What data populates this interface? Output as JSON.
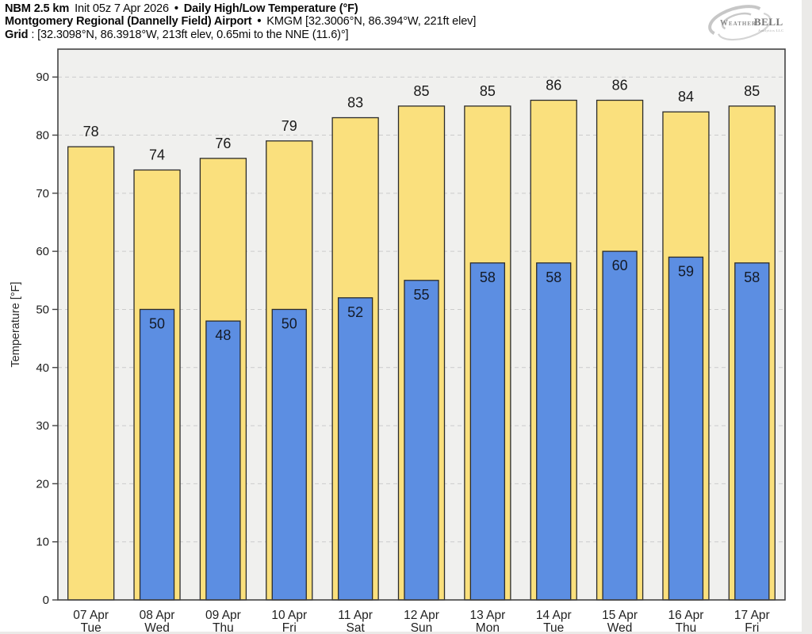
{
  "header": {
    "line1": {
      "model": "NBM 2.5 km",
      "init": "Init 05z 7 Apr 2026",
      "bullet": "•",
      "product": "Daily High/Low Temperature (°F)"
    },
    "line2": {
      "station": "Montgomery Regional (Dannelly Field) Airport",
      "bullet": "•",
      "meta": "KMGM [32.3006°N, 86.394°W, 221ft elev]"
    },
    "line3": {
      "label": "Grid",
      "value": ": [32.3098°N, 86.3918°W, 213ft elev, 0.65mi to the NNE (11.6)°]"
    }
  },
  "logo": {
    "weather": "Weather",
    "bell": "BELL",
    "sub": "Analytics LLC"
  },
  "chart_data": {
    "type": "bar",
    "title": "Daily High/Low Temperature (°F)",
    "xlabel": "",
    "ylabel": "Temperature [°F]",
    "ylim": [
      0,
      94.8
    ],
    "yticks": [
      0,
      10,
      20,
      30,
      40,
      50,
      60,
      70,
      80,
      90
    ],
    "grid": true,
    "grid_style": "dashed-horizontal",
    "legend": "none",
    "categories": [
      "07 Apr",
      "08 Apr",
      "09 Apr",
      "10 Apr",
      "11 Apr",
      "12 Apr",
      "13 Apr",
      "14 Apr",
      "15 Apr",
      "16 Apr",
      "17 Apr"
    ],
    "category_days": [
      "Tue",
      "Wed",
      "Thu",
      "Fri",
      "Sat",
      "Sun",
      "Mon",
      "Tue",
      "Wed",
      "Thu",
      "Fri"
    ],
    "series": [
      {
        "name": "High",
        "color": "#FAE07D",
        "values": [
          78,
          74,
          76,
          79,
          83,
          85,
          85,
          86,
          86,
          84,
          85
        ]
      },
      {
        "name": "Low",
        "color": "#5C8EE2",
        "values": [
          null,
          50,
          48,
          50,
          52,
          55,
          58,
          58,
          60,
          59,
          58
        ]
      }
    ],
    "plot_background": "#F0F0EE",
    "grid_color": "#CBCBCB",
    "axis_color": "#444444",
    "bar_border_color": "#2B2B2B",
    "label_color": "#1A1A1A",
    "tick_label_color": "#1D1D1D"
  }
}
